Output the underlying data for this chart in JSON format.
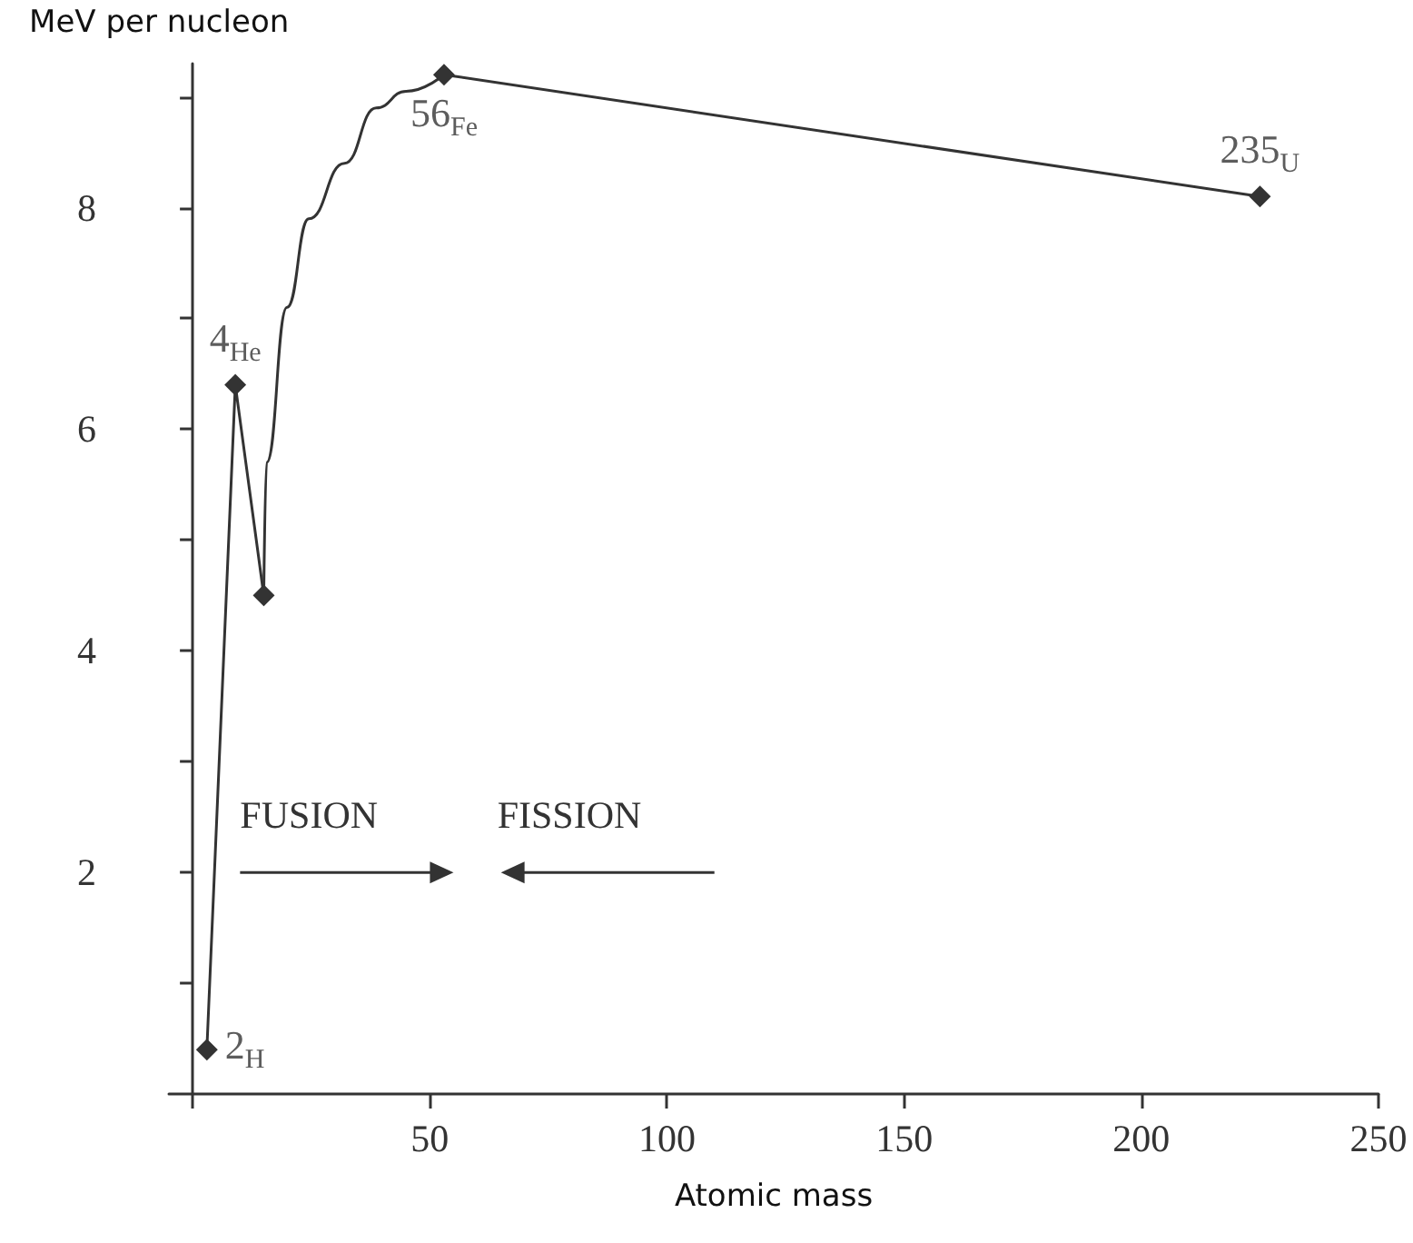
{
  "chart_data": {
    "type": "line",
    "xlabel": "Atomic mass",
    "ylabel": "MeV per nucleon",
    "xlim": [
      -5,
      250
    ],
    "ylim": [
      0,
      9.3
    ],
    "xticks": [
      {
        "value": 0,
        "label": null
      },
      50,
      100,
      150,
      200,
      250
    ],
    "yticks": [
      {
        "value": 1,
        "label": null
      },
      2,
      {
        "value": 3,
        "label": null
      },
      4,
      {
        "value": 5,
        "label": null
      },
      6,
      {
        "value": 7,
        "label": null
      },
      8,
      {
        "value": 9,
        "label": null
      }
    ],
    "grid": false,
    "series": [
      {
        "color": "#333333",
        "marker": "diamond",
        "x": [
          3,
          9,
          15
        ],
        "values": [
          0.4,
          6.4,
          4.5
        ]
      },
      {
        "color": "#333333",
        "marker": "none",
        "x": [
          15,
          15.6,
          19.9,
          24.5,
          32,
          38.7,
          45,
          53
        ],
        "values": [
          4.5,
          5.7,
          7.1,
          7.9,
          8.4,
          8.9,
          9.05,
          9.2
        ]
      },
      {
        "color": "#333333",
        "marker": "diamond",
        "x": [
          53,
          225
        ],
        "values": [
          9.2,
          8.1
        ]
      }
    ],
    "annotations": [
      {
        "text": "2$_{H}$",
        "x": 3,
        "y": 0.4
      },
      {
        "text": "4$_{He}$",
        "x": 9,
        "y": 6.4
      },
      {
        "text": "56$_{Fe}$",
        "x": 53,
        "y": 9.2
      },
      {
        "text": "235$_{U}$",
        "x": 225,
        "y": 8.1
      },
      "FUSION",
      "FISSION"
    ]
  }
}
